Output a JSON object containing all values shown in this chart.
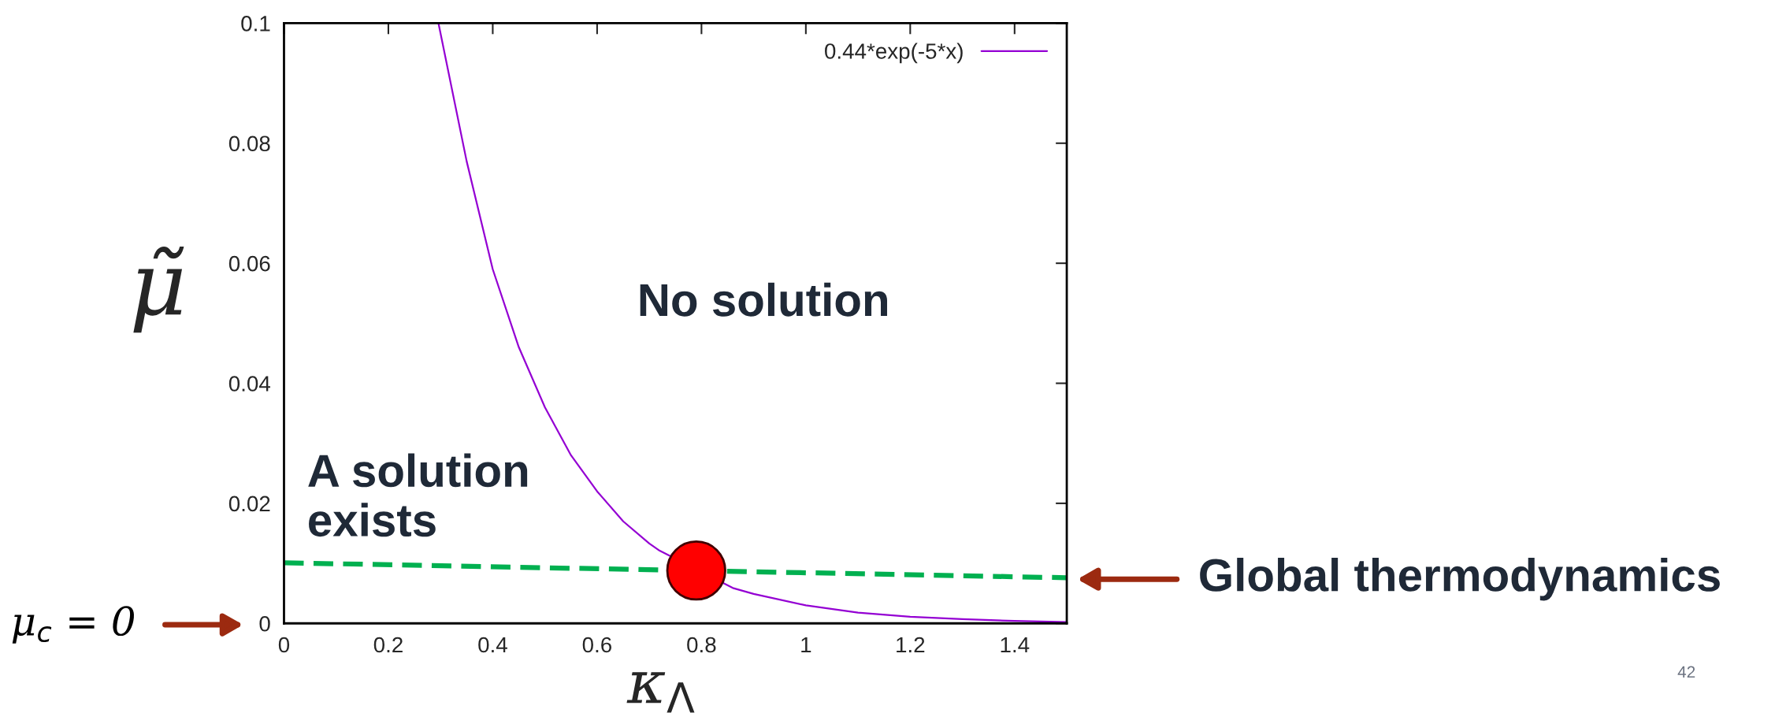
{
  "chart_data": {
    "type": "line",
    "xlabel": "κ$_{Λ}$",
    "ylabel": "μ̃",
    "xlim": [
      0,
      1.5
    ],
    "ylim": [
      0,
      0.1
    ],
    "xticks": [
      0,
      0.2,
      0.4,
      0.6,
      0.8,
      1,
      1.2,
      1.4
    ],
    "yticks": [
      0,
      0.02,
      0.04,
      0.06,
      0.08,
      0.1
    ],
    "series": [
      {
        "name": "0.44*exp(-5*x)",
        "color": "#9400d3",
        "line_style": "solid",
        "x": [
          0.296,
          0.35,
          0.4,
          0.45,
          0.5,
          0.55,
          0.6,
          0.65,
          0.7,
          0.72,
          0.86,
          0.9,
          1.0,
          1.1,
          1.2,
          1.3,
          1.4,
          1.5
        ],
        "values": [
          0.1,
          0.077,
          0.059,
          0.046,
          0.036,
          0.028,
          0.022,
          0.017,
          0.0133,
          0.0121,
          0.0059,
          0.0049,
          0.003,
          0.0018,
          0.0011,
          0.0007,
          0.0004,
          0.0002
        ]
      },
      {
        "color": "#00b050",
        "line_style": "dashed",
        "x": [
          0,
          1.5
        ],
        "values": [
          0.0101,
          0.0076
        ]
      },
      {
        "color": "#ff0000",
        "type": "scatter",
        "marker": "circle",
        "x": [
          0.79
        ],
        "values": [
          0.0088
        ]
      }
    ],
    "legend": "top right",
    "grid": false,
    "annotations": [
      "No solution",
      "A solution exists",
      "Global thermodynamics",
      "μ$_{c}$ = 0",
      "42"
    ]
  }
}
